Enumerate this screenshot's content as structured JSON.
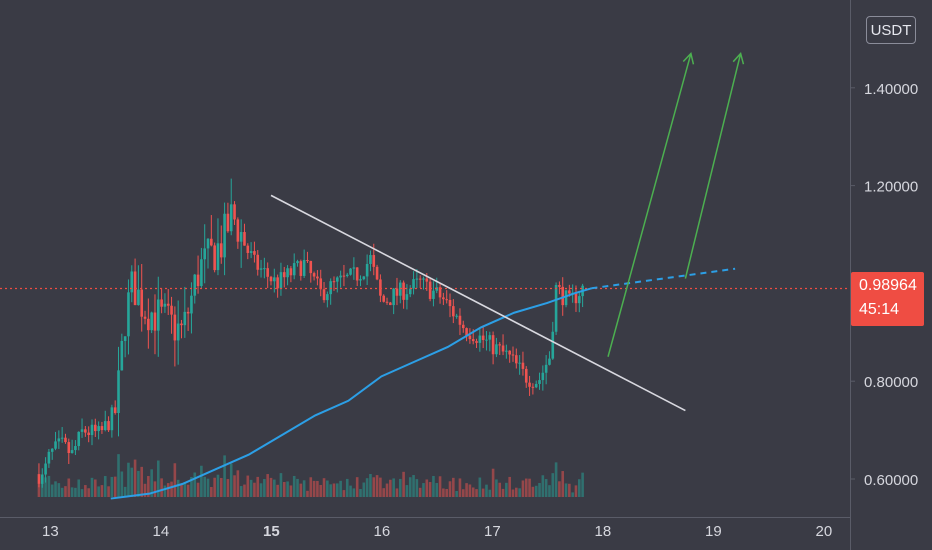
{
  "header": {
    "currency": "USDT"
  },
  "price_label": {
    "value": "0.98964",
    "countdown": "45:14"
  },
  "colors": {
    "background": "#3a3b45",
    "up": "#26a69a",
    "down": "#ef5350",
    "ma": "#2c9fe6",
    "trend": "#d8d8df",
    "arrow": "#4caf50",
    "price_line": "#ef4d43"
  },
  "chart_data": {
    "type": "candlestick",
    "x_axis": {
      "ticks": [
        "13",
        "14",
        "15",
        "16",
        "17",
        "18",
        "19",
        "20"
      ],
      "bold": [
        "15"
      ],
      "range": [
        12.65,
        20.3
      ]
    },
    "y_axis": {
      "ticks": [
        "0.60000",
        "0.80000",
        "1.20000",
        "1.40000"
      ],
      "range": [
        0.56,
        1.56
      ]
    },
    "current_price": 0.98964,
    "ohlc_anchors": [
      {
        "x": 12.9,
        "close": 0.61
      },
      {
        "x": 12.93,
        "close": 0.6
      },
      {
        "x": 13.0,
        "close": 0.65
      },
      {
        "x": 13.1,
        "close": 0.67
      },
      {
        "x": 13.2,
        "close": 0.65
      },
      {
        "x": 13.3,
        "close": 0.7
      },
      {
        "x": 13.45,
        "close": 0.69
      },
      {
        "x": 13.6,
        "close": 0.74
      },
      {
        "x": 13.68,
        "close": 0.93
      },
      {
        "x": 13.75,
        "close": 1.0
      },
      {
        "x": 13.85,
        "close": 0.95
      },
      {
        "x": 14.0,
        "close": 0.93
      },
      {
        "x": 14.2,
        "close": 0.9
      },
      {
        "x": 14.35,
        "close": 1.03
      },
      {
        "x": 14.55,
        "close": 1.08
      },
      {
        "x": 14.65,
        "close": 1.14
      },
      {
        "x": 14.85,
        "close": 1.04
      },
      {
        "x": 15.05,
        "close": 1.0
      },
      {
        "x": 15.3,
        "close": 1.04
      },
      {
        "x": 15.45,
        "close": 0.98
      },
      {
        "x": 15.6,
        "close": 1.0
      },
      {
        "x": 15.8,
        "close": 1.02
      },
      {
        "x": 15.9,
        "close": 1.05
      },
      {
        "x": 16.0,
        "close": 0.96
      },
      {
        "x": 16.15,
        "close": 0.98
      },
      {
        "x": 16.35,
        "close": 1.0
      },
      {
        "x": 16.55,
        "close": 0.97
      },
      {
        "x": 16.75,
        "close": 0.91
      },
      {
        "x": 16.95,
        "close": 0.88
      },
      {
        "x": 17.15,
        "close": 0.85
      },
      {
        "x": 17.3,
        "close": 0.81
      },
      {
        "x": 17.42,
        "close": 0.8
      },
      {
        "x": 17.52,
        "close": 0.85
      },
      {
        "x": 17.58,
        "close": 0.99
      },
      {
        "x": 17.7,
        "close": 0.96
      },
      {
        "x": 17.82,
        "close": 0.99
      }
    ],
    "moving_average": [
      {
        "x": 13.55,
        "y": 0.56
      },
      {
        "x": 13.9,
        "y": 0.57
      },
      {
        "x": 14.2,
        "y": 0.59
      },
      {
        "x": 14.5,
        "y": 0.62
      },
      {
        "x": 14.8,
        "y": 0.65
      },
      {
        "x": 15.1,
        "y": 0.69
      },
      {
        "x": 15.4,
        "y": 0.73
      },
      {
        "x": 15.7,
        "y": 0.76
      },
      {
        "x": 16.0,
        "y": 0.81
      },
      {
        "x": 16.3,
        "y": 0.84
      },
      {
        "x": 16.6,
        "y": 0.87
      },
      {
        "x": 16.9,
        "y": 0.91
      },
      {
        "x": 17.2,
        "y": 0.94
      },
      {
        "x": 17.5,
        "y": 0.96
      },
      {
        "x": 17.75,
        "y": 0.98
      },
      {
        "x": 17.9,
        "y": 0.99
      }
    ],
    "moving_average_projection": [
      {
        "x": 17.9,
        "y": 0.99
      },
      {
        "x": 19.2,
        "y": 1.03
      }
    ],
    "trendline": [
      {
        "x": 15.0,
        "y": 1.18
      },
      {
        "x": 18.75,
        "y": 0.74
      }
    ],
    "arrows": [
      {
        "from": {
          "x": 18.05,
          "y": 0.85
        },
        "to": {
          "x": 18.8,
          "y": 1.47
        }
      },
      {
        "from": {
          "x": 18.75,
          "y": 1.01
        },
        "to": {
          "x": 19.25,
          "y": 1.47
        }
      }
    ],
    "grid": false,
    "volume_bars": true
  }
}
